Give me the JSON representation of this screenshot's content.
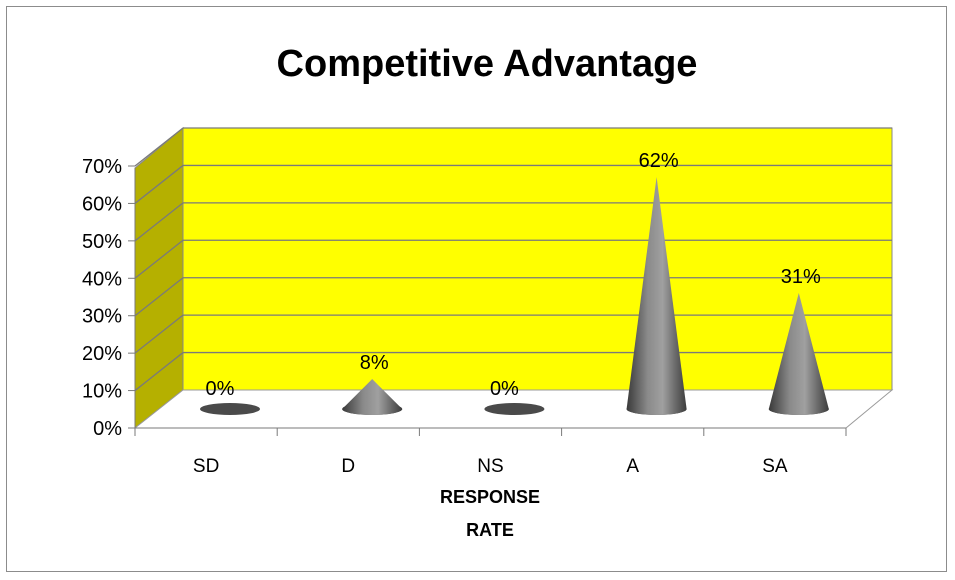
{
  "chart_data": {
    "type": "bar",
    "title": "Competitive Advantage",
    "xlabel": [
      "RESPONSE",
      "RATE"
    ],
    "ylabel": "",
    "categories": [
      "SD",
      "D",
      "NS",
      "A",
      "SA"
    ],
    "values": [
      0,
      8,
      0,
      62,
      31
    ],
    "data_labels": [
      "0%",
      "8%",
      "0%",
      "62%",
      "31%"
    ],
    "yticks": [
      "0%",
      "10%",
      "20%",
      "30%",
      "40%",
      "50%",
      "60%",
      "70%"
    ],
    "ylim": [
      0,
      70
    ],
    "grid": true,
    "legend": "none",
    "colors": {
      "wall": "#ffff00",
      "side_wall": "#b5b000",
      "cone": "#6e6e6e",
      "grid": "#7a7a7a"
    }
  }
}
